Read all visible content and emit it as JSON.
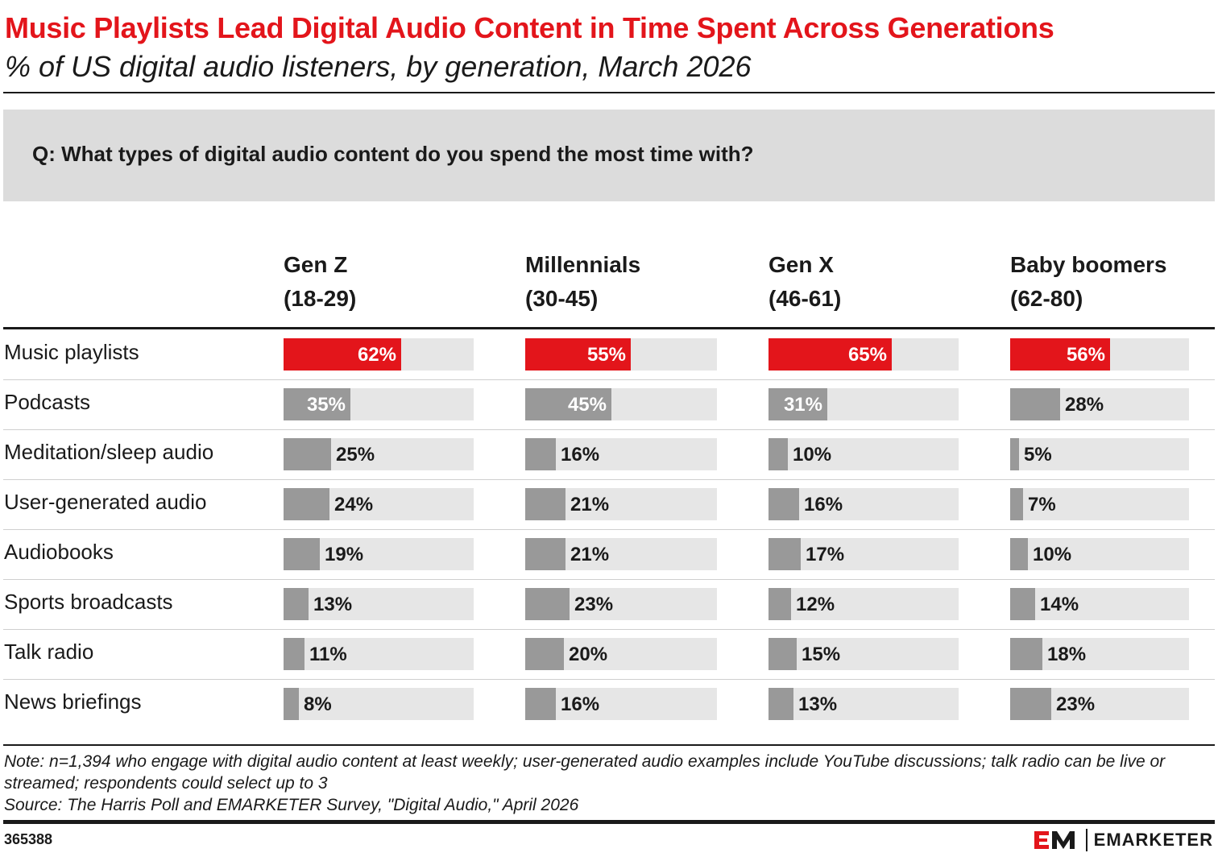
{
  "header": {
    "title": "Music Playlists Lead Digital Audio Content in Time Spent Across Generations",
    "subtitle": "% of US digital audio listeners, by generation, March 2026",
    "question": "Q: What types of digital audio content do you spend the most time with?"
  },
  "chart_data": {
    "type": "bar",
    "title": "Music Playlists Lead Digital Audio Content in Time Spent Across Generations",
    "subtitle": "% of US digital audio listeners, by generation, March 2026",
    "categories": [
      "Music playlists",
      "Podcasts",
      "Meditation/sleep audio",
      "User-generated audio",
      "Audiobooks",
      "Sports broadcasts",
      "Talk radio",
      "News briefings"
    ],
    "groups": [
      {
        "name": "Gen Z",
        "range": "(18-29)",
        "values": [
          62,
          35,
          25,
          24,
          19,
          13,
          11,
          8
        ],
        "labels": [
          "62%",
          "35%",
          "25%",
          "24%",
          "19%",
          "13%",
          "11%",
          "8%"
        ]
      },
      {
        "name": "Millennials",
        "range": "(30-45)",
        "values": [
          55,
          45,
          16,
          21,
          21,
          23,
          20,
          16
        ],
        "labels": [
          "55%",
          "45%",
          "16%",
          "21%",
          "21%",
          "23%",
          "20%",
          "16%"
        ]
      },
      {
        "name": "Gen X",
        "range": "(46-61)",
        "values": [
          65,
          31,
          10,
          16,
          17,
          12,
          15,
          13
        ],
        "labels": [
          "65%",
          "31%",
          "10%",
          "16%",
          "17%",
          "12%",
          "15%",
          "13%"
        ]
      },
      {
        "name": "Baby boomers",
        "range": "(62-80)",
        "values": [
          56,
          28,
          5,
          7,
          10,
          14,
          18,
          23
        ],
        "labels": [
          "56%",
          "28%",
          "5%",
          "7%",
          "10%",
          "14%",
          "18%",
          "23%"
        ]
      }
    ],
    "ylim": [
      0,
      100
    ],
    "highlight_category": "Music playlists",
    "colors": {
      "highlight": "#e3151b",
      "bar": "#999999",
      "track": "#e6e6e6"
    }
  },
  "footer": {
    "note": "Note: n=1,394 who engage with digital audio content at least weekly; user-generated audio examples include YouTube discussions; talk radio can be live or streamed; respondents could select up to 3",
    "source": "Source: The Harris Poll and EMARKETER Survey, \"Digital Audio,\" April 2026",
    "chart_id": "365388",
    "brand": "EMARKETER",
    "brand_mark": "EM"
  }
}
